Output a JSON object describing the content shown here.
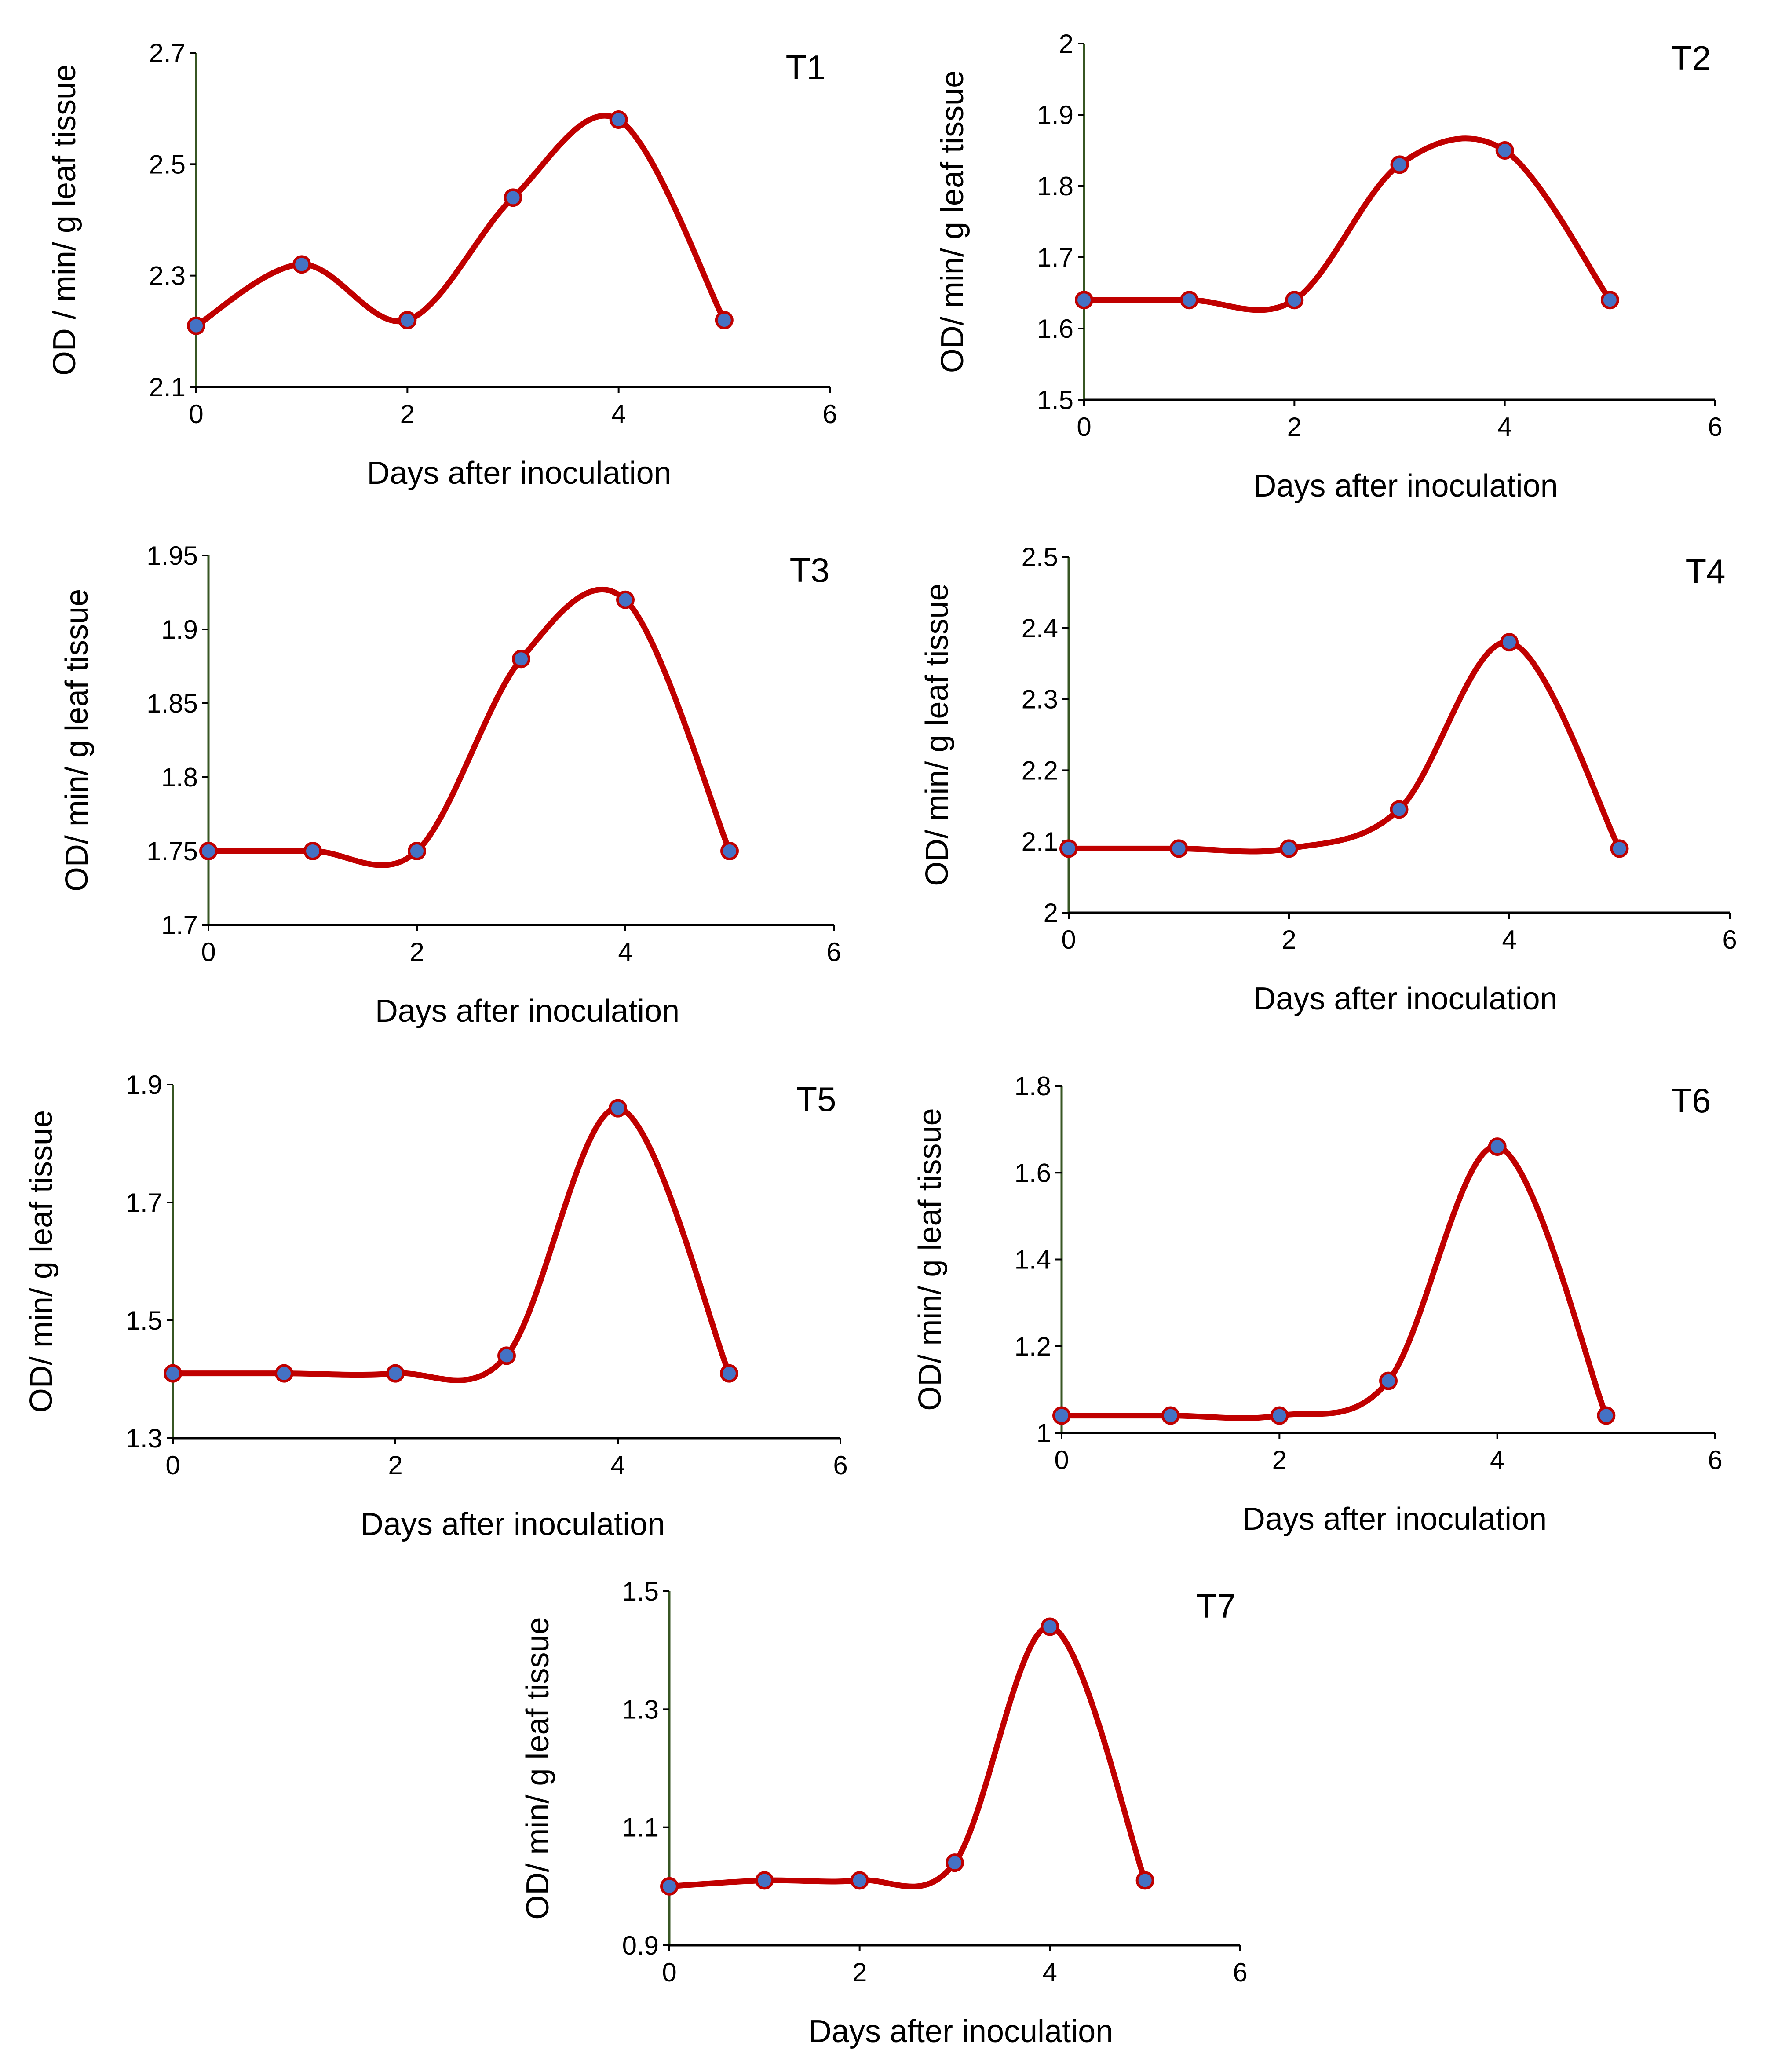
{
  "style": {
    "line_color": "#C00000",
    "marker_fill": "#4472C4",
    "marker_edge": "#C00000",
    "y_axis_color": "#375623",
    "x_axis_color": "#000000"
  },
  "chart_data": [
    {
      "type": "line",
      "smooth": true,
      "title": "T1",
      "xlabel": "Days after inoculation",
      "ylabel": "OD / min/ g leaf tissue",
      "xlim": [
        0,
        6
      ],
      "xticks": [
        "0",
        "2",
        "4",
        "6"
      ],
      "ylim": [
        2.1,
        2.7
      ],
      "yticks": [
        "2.1",
        "2.3",
        "2.5",
        "2.7"
      ],
      "grid": false,
      "x": [
        0,
        1,
        2,
        3,
        4,
        5
      ],
      "y": [
        2.21,
        2.32,
        2.22,
        2.44,
        2.58,
        2.22
      ]
    },
    {
      "type": "line",
      "smooth": true,
      "title": "T2",
      "xlabel": "Days after inoculation",
      "ylabel": "OD/ min/ g leaf tissue",
      "xlim": [
        0,
        6
      ],
      "xticks": [
        "0",
        "2",
        "4",
        "6"
      ],
      "ylim": [
        1.5,
        2.0
      ],
      "yticks": [
        "1.5",
        "1.6",
        "1.7",
        "1.8",
        "1.9",
        "2"
      ],
      "grid": false,
      "x": [
        0,
        1,
        2,
        3,
        4,
        5
      ],
      "y": [
        1.64,
        1.64,
        1.64,
        1.83,
        1.85,
        1.64
      ]
    },
    {
      "type": "line",
      "smooth": true,
      "title": "T3",
      "xlabel": "Days after inoculation",
      "ylabel": "OD/ min/ g leaf tissue",
      "xlim": [
        0,
        6
      ],
      "xticks": [
        "0",
        "2",
        "4",
        "6"
      ],
      "ylim": [
        1.7,
        1.95
      ],
      "yticks": [
        "1.7",
        "1.75",
        "1.8",
        "1.85",
        "1.9",
        "1.95"
      ],
      "grid": false,
      "x": [
        0,
        1,
        2,
        3,
        4,
        5
      ],
      "y": [
        1.75,
        1.75,
        1.75,
        1.88,
        1.92,
        1.75
      ]
    },
    {
      "type": "line",
      "smooth": true,
      "title": "T4",
      "xlabel": "Days after inoculation",
      "ylabel": "OD/ min/ g leaf tissue",
      "xlim": [
        0,
        6
      ],
      "xticks": [
        "0",
        "2",
        "4",
        "6"
      ],
      "ylim": [
        2.0,
        2.5
      ],
      "yticks": [
        "2",
        "2.1",
        "2.2",
        "2.3",
        "2.4",
        "2.5"
      ],
      "grid": false,
      "x": [
        0,
        1,
        2,
        3,
        4,
        5
      ],
      "y": [
        2.09,
        2.09,
        2.09,
        2.145,
        2.38,
        2.09
      ]
    },
    {
      "type": "line",
      "smooth": true,
      "title": "T5",
      "xlabel": "Days after inoculation",
      "ylabel": "OD/ min/ g leaf tissue",
      "xlim": [
        0,
        6
      ],
      "xticks": [
        "0",
        "2",
        "4",
        "6"
      ],
      "ylim": [
        1.3,
        1.9
      ],
      "yticks": [
        "1.3",
        "1.5",
        "1.7",
        "1.9"
      ],
      "grid": false,
      "x": [
        0,
        1,
        2,
        3,
        4,
        5
      ],
      "y": [
        1.41,
        1.41,
        1.41,
        1.44,
        1.86,
        1.41
      ]
    },
    {
      "type": "line",
      "smooth": true,
      "title": "T6",
      "xlabel": "Days after inoculation",
      "ylabel": "OD/ min/ g leaf tissue",
      "xlim": [
        0,
        6
      ],
      "xticks": [
        "0",
        "2",
        "4",
        "6"
      ],
      "ylim": [
        1.0,
        1.8
      ],
      "yticks": [
        "1",
        "1.2",
        "1.4",
        "1.6",
        "1.8"
      ],
      "grid": false,
      "x": [
        0,
        1,
        2,
        3,
        4,
        5
      ],
      "y": [
        1.04,
        1.04,
        1.04,
        1.12,
        1.66,
        1.04
      ]
    },
    {
      "type": "line",
      "smooth": true,
      "title": "T7",
      "xlabel": "Days after inoculation",
      "ylabel": "OD/ min/ g leaf tissue",
      "xlim": [
        0,
        6
      ],
      "xticks": [
        "0",
        "2",
        "4",
        "6"
      ],
      "ylim": [
        0.9,
        1.5
      ],
      "yticks": [
        "0.9",
        "1.1",
        "1.3",
        "1.5"
      ],
      "grid": false,
      "x": [
        0,
        1,
        2,
        3,
        4,
        5
      ],
      "y": [
        1.0,
        1.01,
        1.01,
        1.04,
        1.44,
        1.01
      ]
    }
  ]
}
